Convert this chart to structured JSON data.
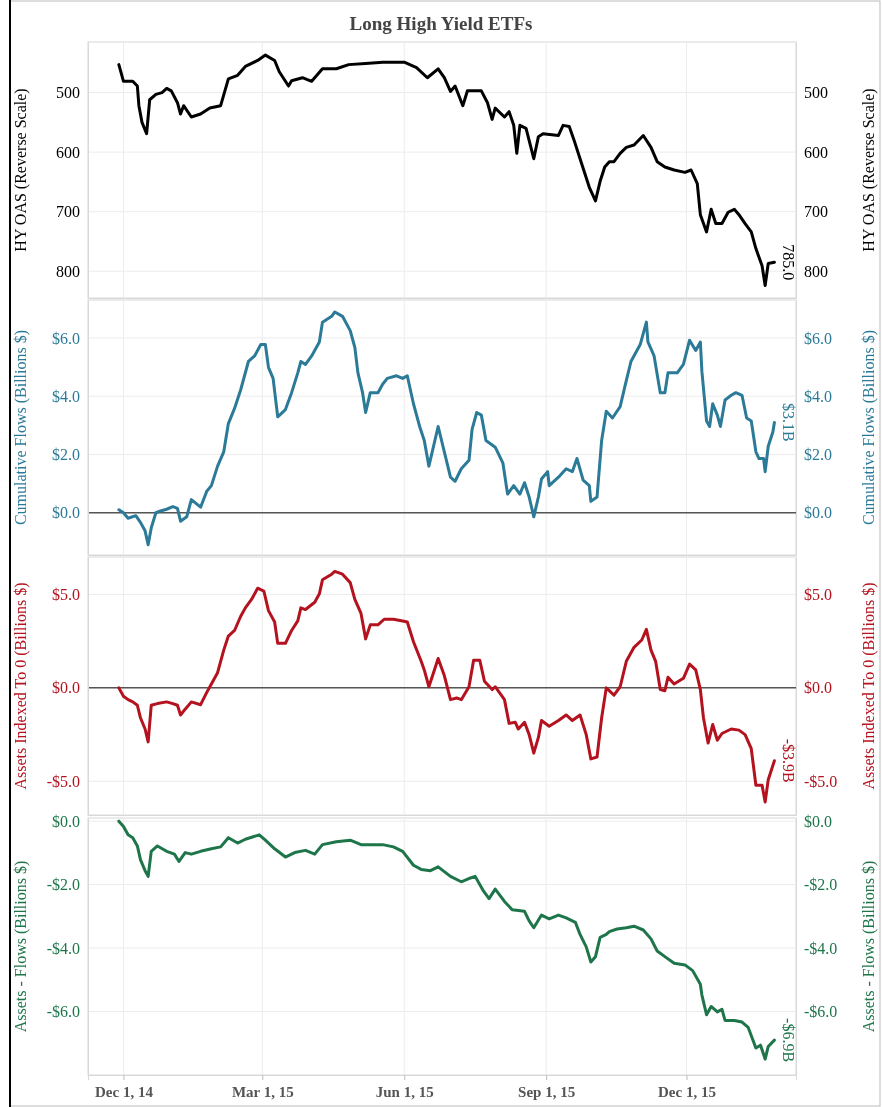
{
  "chart_data": [
    {
      "type": "line",
      "title": "Long High Yield ETFs",
      "ylabel": "HY OAS (Reverse Scale)",
      "y2label": "HY OAS (Reverse Scale)",
      "xlim": [
        "2014-11-08",
        "2016-02-10"
      ],
      "xticks": [
        {
          "value": "2014-12-01",
          "label": null
        },
        {
          "value": "2015-03-01",
          "label": null
        },
        {
          "value": "2015-06-01",
          "label": null
        },
        {
          "value": "2015-09-01",
          "label": null
        },
        {
          "value": "2015-12-01",
          "label": null
        }
      ],
      "ylim": [
        845,
        415
      ],
      "yticks": [
        500,
        600,
        700,
        800
      ],
      "y2lim": [
        845,
        415
      ],
      "y2ticks": [
        500,
        600,
        700,
        800
      ],
      "grid": true,
      "tick_labels": "y",
      "annotations": [
        {
          "text": "785.0",
          "x": "2016-01-27",
          "y": 785
        }
      ],
      "series": [
        {
          "color": "#000000",
          "x": [
            "2014-11-28",
            "2014-12-01",
            "2014-12-07",
            "2014-12-10",
            "2014-12-11",
            "2014-12-13",
            "2014-12-16",
            "2014-12-18",
            "2014-12-22",
            "2014-12-26",
            "2014-12-29",
            "2015-01-01",
            "2015-01-05",
            "2015-01-07",
            "2015-01-09",
            "2015-01-14",
            "2015-01-20",
            "2015-01-26",
            "2015-02-02",
            "2015-02-07",
            "2015-02-13",
            "2015-02-18",
            "2015-02-26",
            "2015-03-03",
            "2015-03-09",
            "2015-03-12",
            "2015-03-18",
            "2015-03-20",
            "2015-03-27",
            "2015-04-02",
            "2015-04-09",
            "2015-04-18",
            "2015-04-26",
            "2015-05-07",
            "2015-05-18",
            "2015-06-01",
            "2015-06-09",
            "2015-06-16",
            "2015-06-23",
            "2015-06-27",
            "2015-07-01",
            "2015-07-04",
            "2015-07-09",
            "2015-07-12",
            "2015-07-21",
            "2015-07-25",
            "2015-07-28",
            "2015-07-30",
            "2015-08-05",
            "2015-08-08",
            "2015-08-11",
            "2015-08-13",
            "2015-08-15",
            "2015-08-19",
            "2015-08-24",
            "2015-08-27",
            "2015-08-30",
            "2015-09-09",
            "2015-09-12",
            "2015-09-16",
            "2015-09-19",
            "2015-09-23",
            "2015-09-29",
            "2015-10-03",
            "2015-10-06",
            "2015-10-09",
            "2015-10-12",
            "2015-10-15",
            "2015-10-19",
            "2015-10-23",
            "2015-10-28",
            "2015-11-03",
            "2015-11-08",
            "2015-11-12",
            "2015-11-17",
            "2015-11-23",
            "2015-11-30",
            "2015-12-04",
            "2015-12-08",
            "2015-12-10",
            "2015-12-14",
            "2015-12-17",
            "2015-12-20",
            "2015-12-24",
            "2015-12-28",
            "2016-01-01",
            "2016-01-04",
            "2016-01-08",
            "2016-01-12",
            "2016-01-15",
            "2016-01-19",
            "2016-01-21",
            "2016-01-23",
            "2016-01-27"
          ],
          "values": [
            453,
            481,
            481,
            489,
            522,
            550,
            569,
            512,
            503,
            500,
            493,
            497,
            517,
            536,
            522,
            541,
            536,
            526,
            522,
            477,
            471,
            456,
            446,
            437,
            446,
            465,
            489,
            480,
            475,
            481,
            460,
            460,
            453,
            451,
            449,
            449,
            458,
            475,
            460,
            475,
            498,
            489,
            522,
            497,
            497,
            517,
            545,
            526,
            541,
            532,
            555,
            602,
            555,
            560,
            611,
            574,
            569,
            572,
            555,
            557,
            579,
            611,
            659,
            682,
            649,
            625,
            616,
            616,
            602,
            592,
            588,
            572,
            592,
            616,
            625,
            630,
            634,
            630,
            653,
            705,
            734,
            696,
            720,
            720,
            701,
            696,
            705,
            720,
            734,
            762,
            791,
            824,
            787,
            785
          ]
        }
      ]
    },
    {
      "type": "line",
      "ylabel": "Cumulative Flows (Billions $)",
      "y2label": "Cumulative Flows (Billions $)",
      "xlim": [
        "2014-11-08",
        "2016-02-10"
      ],
      "xticks": [
        {
          "value": "2014-12-01",
          "label": null
        },
        {
          "value": "2015-03-01",
          "label": null
        },
        {
          "value": "2015-06-01",
          "label": null
        },
        {
          "value": "2015-09-01",
          "label": null
        },
        {
          "value": "2015-12-01",
          "label": null
        }
      ],
      "ylim": [
        -1.45,
        7.3
      ],
      "yticks": [
        {
          "value": 0,
          "label": "$0.0"
        },
        {
          "value": 2,
          "label": "$2.0"
        },
        {
          "value": 4,
          "label": "$4.0"
        },
        {
          "value": 6,
          "label": "$6.0"
        }
      ],
      "y2lim": [
        -1.45,
        7.3
      ],
      "y2ticks": [
        {
          "value": 0,
          "label": "$0.0"
        },
        {
          "value": 2,
          "label": "$2.0"
        },
        {
          "value": 4,
          "label": "$4.0"
        },
        {
          "value": 6,
          "label": "$6.0"
        }
      ],
      "grid": true,
      "tick_labels": "y",
      "ref_lines": [
        {
          "axis": "y",
          "value": 0,
          "color": "#555555"
        }
      ],
      "annotations": [
        {
          "text": "$3.1B",
          "x": "2016-01-27",
          "y": 3.1
        }
      ],
      "series": [
        {
          "color": "#2b7a98",
          "x": [
            "2014-11-28",
            "2014-12-01",
            "2014-12-04",
            "2014-12-09",
            "2014-12-12",
            "2014-12-15",
            "2014-12-17",
            "2014-12-19",
            "2014-12-22",
            "2014-12-25",
            "2014-12-29",
            "2015-01-02",
            "2015-01-05",
            "2015-01-07",
            "2015-01-11",
            "2015-01-14",
            "2015-01-20",
            "2015-01-24",
            "2015-01-27",
            "2015-01-31",
            "2015-02-04",
            "2015-02-07",
            "2015-02-11",
            "2015-02-15",
            "2015-02-20",
            "2015-02-24",
            "2015-02-28",
            "2015-03-03",
            "2015-03-05",
            "2015-03-08",
            "2015-03-11",
            "2015-03-16",
            "2015-03-20",
            "2015-03-24",
            "2015-03-26",
            "2015-03-29",
            "2015-04-02",
            "2015-04-07",
            "2015-04-09",
            "2015-04-15",
            "2015-04-17",
            "2015-04-22",
            "2015-04-27",
            "2015-04-30",
            "2015-05-02",
            "2015-05-05",
            "2015-05-07",
            "2015-05-10",
            "2015-05-15",
            "2015-05-18",
            "2015-05-21",
            "2015-05-27",
            "2015-05-31",
            "2015-06-03",
            "2015-06-07",
            "2015-06-11",
            "2015-06-14",
            "2015-06-17",
            "2015-06-20",
            "2015-06-23",
            "2015-06-27",
            "2015-07-01",
            "2015-07-04",
            "2015-07-08",
            "2015-07-13",
            "2015-07-15",
            "2015-07-18",
            "2015-07-21",
            "2015-07-24",
            "2015-07-30",
            "2015-08-04",
            "2015-08-07",
            "2015-08-11",
            "2015-08-15",
            "2015-08-18",
            "2015-08-21",
            "2015-08-24",
            "2015-08-27",
            "2015-08-29",
            "2015-09-02",
            "2015-09-03",
            "2015-09-09",
            "2015-09-14",
            "2015-09-18",
            "2015-09-21",
            "2015-09-25",
            "2015-09-29",
            "2015-09-30",
            "2015-10-04",
            "2015-10-07",
            "2015-10-10",
            "2015-10-14",
            "2015-10-19",
            "2015-10-22",
            "2015-10-26",
            "2015-11-01",
            "2015-11-05",
            "2015-11-06",
            "2015-11-10",
            "2015-11-14",
            "2015-11-17",
            "2015-11-19",
            "2015-11-25",
            "2015-11-29",
            "2015-12-03",
            "2015-12-07",
            "2015-12-10",
            "2015-12-11",
            "2015-12-14",
            "2015-12-16",
            "2015-12-18",
            "2015-12-21",
            "2015-12-23",
            "2015-12-26",
            "2015-12-30",
            "2016-01-02",
            "2016-01-06",
            "2016-01-09",
            "2016-01-12",
            "2016-01-15",
            "2016-01-17",
            "2016-01-20",
            "2016-01-21",
            "2016-01-23",
            "2016-01-26",
            "2016-01-27"
          ],
          "values": [
            0.1,
            0,
            -0.19,
            -0.1,
            -0.33,
            -0.62,
            -1.1,
            -0.52,
            0,
            0.06,
            0.12,
            0.21,
            0.15,
            -0.29,
            -0.14,
            0.45,
            0.19,
            0.74,
            0.93,
            1.6,
            2.09,
            3.06,
            3.58,
            4.22,
            5.19,
            5.38,
            5.77,
            5.77,
            4.99,
            4.61,
            3.29,
            3.54,
            4.12,
            4.8,
            5.19,
            5.09,
            5.38,
            5.86,
            6.54,
            6.74,
            6.89,
            6.74,
            6.25,
            5.67,
            4.8,
            4.12,
            3.44,
            4.12,
            4.12,
            4.41,
            4.61,
            4.7,
            4.61,
            4.7,
            3.74,
            2.96,
            2.48,
            1.6,
            2.28,
            2.96,
            2.09,
            1.22,
            1.08,
            1.51,
            1.8,
            2.86,
            3.44,
            3.35,
            2.48,
            2.25,
            1.7,
            0.64,
            0.93,
            0.64,
            1.03,
            0.54,
            -0.14,
            0.54,
            1.16,
            1.41,
            0.93,
            1.22,
            1.51,
            1.41,
            1.86,
            1.12,
            0.93,
            0.39,
            0.54,
            2.48,
            3.48,
            3.25,
            3.64,
            4.32,
            5.19,
            5.77,
            6.54,
            5.86,
            5.38,
            4.12,
            4.12,
            4.8,
            4.8,
            5.09,
            5.92,
            5.57,
            5.86,
            4.84,
            3.15,
            2.96,
            3.74,
            3.35,
            2.96,
            3.87,
            4.03,
            4.12,
            4.03,
            3.25,
            3.15,
            2.09,
            1.86,
            1.86,
            1.41,
            2.28,
            2.77,
            3.1
          ]
        }
      ]
    },
    {
      "type": "line",
      "ylabel": "Assets Indexed To 0 (Billions $)",
      "y2label": "Assets Indexed To 0 (Billions $)",
      "xlim": [
        "2014-11-08",
        "2016-02-10"
      ],
      "xticks": [
        {
          "value": "2014-12-01",
          "label": null
        },
        {
          "value": "2015-03-01",
          "label": null
        },
        {
          "value": "2015-06-01",
          "label": null
        },
        {
          "value": "2015-09-01",
          "label": null
        },
        {
          "value": "2015-12-01",
          "label": null
        }
      ],
      "ylim": [
        -6.8,
        7.0
      ],
      "yticks": [
        {
          "value": -5,
          "label": "-$5.0"
        },
        {
          "value": 0,
          "label": "$0.0"
        },
        {
          "value": 5,
          "label": "$5.0"
        }
      ],
      "y2lim": [
        -6.8,
        7.0
      ],
      "y2ticks": [
        {
          "value": -5,
          "label": "-$5.0"
        },
        {
          "value": 0,
          "label": "$0.0"
        },
        {
          "value": 5,
          "label": "$5.0"
        }
      ],
      "grid": true,
      "tick_labels": "y",
      "ref_lines": [
        {
          "axis": "y",
          "value": 0,
          "color": "#555555"
        }
      ],
      "annotations": [
        {
          "text": "-$3.9B",
          "x": "2016-01-27",
          "y": -3.9
        }
      ],
      "series": [
        {
          "color": "#b3121e",
          "x": [
            "2014-11-28",
            "2014-12-01",
            "2014-12-04",
            "2014-12-07",
            "2014-12-10",
            "2014-12-12",
            "2014-12-15",
            "2014-12-17",
            "2014-12-19",
            "2014-12-23",
            "2014-12-29",
            "2015-01-02",
            "2015-01-05",
            "2015-01-07",
            "2015-01-10",
            "2015-01-14",
            "2015-01-20",
            "2015-01-24",
            "2015-01-27",
            "2015-01-31",
            "2015-02-04",
            "2015-02-07",
            "2015-02-11",
            "2015-02-15",
            "2015-02-18",
            "2015-02-22",
            "2015-02-26",
            "2015-03-02",
            "2015-03-05",
            "2015-03-09",
            "2015-03-11",
            "2015-03-16",
            "2015-03-20",
            "2015-03-24",
            "2015-03-26",
            "2015-03-29",
            "2015-04-04",
            "2015-04-07",
            "2015-04-09",
            "2015-04-15",
            "2015-04-17",
            "2015-04-22",
            "2015-04-27",
            "2015-04-30",
            "2015-05-04",
            "2015-05-07",
            "2015-05-10",
            "2015-05-15",
            "2015-05-19",
            "2015-05-25",
            "2015-05-31",
            "2015-06-03",
            "2015-06-07",
            "2015-06-12",
            "2015-06-14",
            "2015-06-17",
            "2015-06-20",
            "2015-06-23",
            "2015-06-27",
            "2015-07-01",
            "2015-07-05",
            "2015-07-08",
            "2015-07-13",
            "2015-07-16",
            "2015-07-20",
            "2015-07-23",
            "2015-07-28",
            "2015-07-30",
            "2015-08-05",
            "2015-08-08",
            "2015-08-12",
            "2015-08-14",
            "2015-08-18",
            "2015-08-21",
            "2015-08-24",
            "2015-08-27",
            "2015-08-29",
            "2015-09-03",
            "2015-09-09",
            "2015-09-14",
            "2015-09-18",
            "2015-09-23",
            "2015-09-27",
            "2015-09-30",
            "2015-10-04",
            "2015-10-07",
            "2015-10-10",
            "2015-10-15",
            "2015-10-19",
            "2015-10-23",
            "2015-10-28",
            "2015-11-02",
            "2015-11-05",
            "2015-11-08",
            "2015-11-11",
            "2015-11-14",
            "2015-11-17",
            "2015-11-19",
            "2015-11-23",
            "2015-11-29",
            "2015-12-03",
            "2015-12-07",
            "2015-12-10",
            "2015-12-12",
            "2015-12-15",
            "2015-12-18",
            "2015-12-21",
            "2015-12-24",
            "2015-12-30",
            "2016-01-04",
            "2016-01-08",
            "2016-01-12",
            "2016-01-15",
            "2016-01-19",
            "2016-01-21",
            "2016-01-23",
            "2016-01-27"
          ],
          "values": [
            0,
            -0.45,
            -0.63,
            -0.75,
            -0.93,
            -1.6,
            -2.2,
            -2.89,
            -0.93,
            -0.84,
            -0.75,
            -0.84,
            -0.93,
            -1.45,
            -1.14,
            -0.75,
            -0.9,
            -0.24,
            0.21,
            0.81,
            2.02,
            2.77,
            3.07,
            3.83,
            4.28,
            4.73,
            5.33,
            5.18,
            4.13,
            3.52,
            2.38,
            2.38,
            3.07,
            3.58,
            4.28,
            4.19,
            4.58,
            5.03,
            5.78,
            6.08,
            6.23,
            6.08,
            5.63,
            4.73,
            3.98,
            2.62,
            3.37,
            3.37,
            3.67,
            3.67,
            3.58,
            3.52,
            2.47,
            1.42,
            0.96,
            0.06,
            0.81,
            1.57,
            0.66,
            -0.63,
            -0.54,
            -0.63,
            0.06,
            1.48,
            1.48,
            0.36,
            -0.09,
            0.06,
            -0.63,
            -1.9,
            -1.84,
            -2.2,
            -1.84,
            -2.5,
            -3.49,
            -2.65,
            -1.75,
            -2.05,
            -1.75,
            -1.45,
            -1.75,
            -1.45,
            -2.5,
            -3.8,
            -3.7,
            -1.6,
            0,
            -0.39,
            0.06,
            1.42,
            2.17,
            2.56,
            3.13,
            2.02,
            1.42,
            -0.09,
            -0.15,
            0.57,
            0.21,
            0.51,
            1.27,
            0.96,
            -0.09,
            -1.6,
            -2.95,
            -1.96,
            -2.8,
            -2.44,
            -2.2,
            -2.26,
            -2.5,
            -3.25,
            -5.21,
            -5.21,
            -6.11,
            -4.91,
            -3.9
          ]
        }
      ]
    },
    {
      "type": "line",
      "ylabel": "Assets - Flows (Billions $)",
      "y2label": "Assets - Flows (Billions $)",
      "xlim": [
        "2014-11-08",
        "2016-02-10"
      ],
      "xticks": [
        {
          "value": "2014-12-01",
          "label": "Dec 1, 14"
        },
        {
          "value": "2015-03-01",
          "label": "Mar 1, 15"
        },
        {
          "value": "2015-06-01",
          "label": "Jun 1, 15"
        },
        {
          "value": "2015-09-01",
          "label": "Sep 1, 15"
        },
        {
          "value": "2015-12-01",
          "label": "Dec 1, 15"
        }
      ],
      "ylim": [
        -8.0,
        0.1
      ],
      "yticks": [
        {
          "value": -6,
          "label": "-$6.0"
        },
        {
          "value": -4,
          "label": "-$4.0"
        },
        {
          "value": -2,
          "label": "-$2.0"
        },
        {
          "value": 0,
          "label": "$0.0"
        }
      ],
      "y2lim": [
        -8.0,
        0.1
      ],
      "y2ticks": [
        {
          "value": -6,
          "label": "-$6.0"
        },
        {
          "value": -4,
          "label": "-$4.0"
        },
        {
          "value": -2,
          "label": "-$2.0"
        },
        {
          "value": 0,
          "label": "$0.0"
        }
      ],
      "grid": true,
      "annotations": [
        {
          "text": "-$6.9B",
          "x": "2016-01-27",
          "y": -6.9
        }
      ],
      "series": [
        {
          "color": "#1d7549",
          "x": [
            "2014-11-28",
            "2014-12-01",
            "2014-12-04",
            "2014-12-07",
            "2014-12-10",
            "2014-12-12",
            "2014-12-15",
            "2014-12-17",
            "2014-12-19",
            "2014-12-23",
            "2014-12-29",
            "2015-01-03",
            "2015-01-06",
            "2015-01-10",
            "2015-01-14",
            "2015-01-20",
            "2015-01-27",
            "2015-02-02",
            "2015-02-07",
            "2015-02-13",
            "2015-02-18",
            "2015-02-27",
            "2015-03-03",
            "2015-03-09",
            "2015-03-16",
            "2015-03-22",
            "2015-03-29",
            "2015-04-04",
            "2015-04-09",
            "2015-04-18",
            "2015-04-27",
            "2015-05-04",
            "2015-05-10",
            "2015-05-18",
            "2015-05-25",
            "2015-05-31",
            "2015-06-07",
            "2015-06-12",
            "2015-06-18",
            "2015-06-23",
            "2015-07-01",
            "2015-07-08",
            "2015-07-14",
            "2015-07-17",
            "2015-07-22",
            "2015-07-26",
            "2015-07-30",
            "2015-08-05",
            "2015-08-10",
            "2015-08-18",
            "2015-08-21",
            "2015-08-24",
            "2015-08-29",
            "2015-09-03",
            "2015-09-09",
            "2015-09-14",
            "2015-09-20",
            "2015-09-23",
            "2015-09-27",
            "2015-09-30",
            "2015-10-03",
            "2015-10-06",
            "2015-10-10",
            "2015-10-12",
            "2015-10-17",
            "2015-10-23",
            "2015-10-28",
            "2015-11-03",
            "2015-11-08",
            "2015-11-12",
            "2015-11-17",
            "2015-11-23",
            "2015-11-30",
            "2015-12-05",
            "2015-12-10",
            "2015-12-11",
            "2015-12-14",
            "2015-12-17",
            "2015-12-21",
            "2015-12-24",
            "2015-12-26",
            "2016-01-01",
            "2016-01-06",
            "2016-01-10",
            "2016-01-13",
            "2016-01-15",
            "2016-01-18",
            "2016-01-21",
            "2016-01-23",
            "2016-01-27"
          ],
          "values": [
            0,
            -0.17,
            -0.43,
            -0.52,
            -0.78,
            -1.21,
            -1.56,
            -1.74,
            -0.95,
            -0.78,
            -0.95,
            -1.04,
            -1.27,
            -0.99,
            -1.04,
            -0.95,
            -0.87,
            -0.81,
            -0.52,
            -0.69,
            -0.57,
            -0.43,
            -0.6,
            -0.87,
            -1.13,
            -0.99,
            -0.92,
            -1.04,
            -0.74,
            -0.65,
            -0.6,
            -0.74,
            -0.74,
            -0.74,
            -0.81,
            -0.95,
            -1.39,
            -1.52,
            -1.56,
            -1.44,
            -1.74,
            -1.91,
            -1.79,
            -1.74,
            -2.17,
            -2.44,
            -2.14,
            -2.53,
            -2.79,
            -2.84,
            -3.14,
            -3.36,
            -2.96,
            -3.08,
            -2.96,
            -3.05,
            -3.19,
            -3.57,
            -3.96,
            -4.44,
            -4.27,
            -3.66,
            -3.57,
            -3.48,
            -3.4,
            -3.36,
            -3.31,
            -3.43,
            -3.71,
            -4.09,
            -4.27,
            -4.48,
            -4.53,
            -4.71,
            -5.14,
            -5.48,
            -6.1,
            -5.84,
            -6.01,
            -5.93,
            -6.28,
            -6.28,
            -6.33,
            -6.5,
            -6.89,
            -7.15,
            -7.06,
            -7.5,
            -7.1,
            -6.9
          ]
        }
      ]
    }
  ]
}
